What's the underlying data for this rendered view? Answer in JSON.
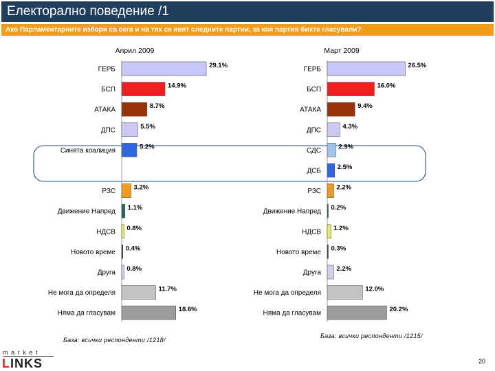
{
  "header": {
    "title": "Електорално поведение /1",
    "question": "Ако Парламентарните избори са сега и на тях се явят следните партии, за коя партия бихте гласували?"
  },
  "colors": {
    "title_bg": "#1f3e5c",
    "question_bg": "#f39c1a",
    "highlight_frame": "#2b4a88"
  },
  "chart_data": [
    {
      "type": "bar",
      "orientation": "horizontal",
      "title": "Април 2009",
      "xlim": [
        0,
        30
      ],
      "categories": [
        "ГЕРБ",
        "БСП",
        "АТАКА",
        "ДПС",
        "Синята коалиция",
        "",
        "РЗС",
        "Движение Напред",
        "НДСВ",
        "Новото време",
        "Друга",
        "Не мога да определя",
        "Няма да гласувам"
      ],
      "values": [
        29.1,
        14.9,
        8.7,
        5.5,
        5.2,
        null,
        3.2,
        1.1,
        0.8,
        0.4,
        0.8,
        11.7,
        18.6
      ],
      "labels": [
        "29.1%",
        "14.9%",
        "8.7%",
        "5.5%",
        "5.2%",
        "",
        "3.2%",
        "1.1%",
        "0.8%",
        "0.4%",
        "0.8%",
        "11.7%",
        "18.6%"
      ],
      "colors": [
        "#c8c8f8",
        "#f01e1e",
        "#9a3208",
        "#cccaf4",
        "#2e66e4",
        "#ffffff",
        "#f59a1c",
        "#1e6a5a",
        "#f2ee5a",
        "#333333",
        "#d0d0f0",
        "#c4c4c4",
        "#9c9c9c"
      ],
      "base_note": "База: всички респонденти /1218/"
    },
    {
      "type": "bar",
      "orientation": "horizontal",
      "title": "Март 2009",
      "xlim": [
        0,
        30
      ],
      "categories": [
        "ГЕРБ",
        "БСП",
        "АТАКА",
        "ДПС",
        "СДС",
        "ДСБ",
        "РЗС",
        "Движение Напред",
        "НДСВ",
        "Новото време",
        "Друга",
        "Не мога да определя",
        "Няма да гласувам"
      ],
      "values": [
        26.5,
        16.0,
        9.4,
        4.3,
        2.9,
        2.5,
        2.2,
        0.2,
        1.2,
        0.3,
        2.2,
        12.0,
        20.2
      ],
      "labels": [
        "26.5%",
        "16.0%",
        "9.4%",
        "4.3%",
        "2.9%",
        "2.5%",
        "2.2%",
        "0.2%",
        "1.2%",
        "0.3%",
        "2.2%",
        "12.0%",
        "20.2%"
      ],
      "colors": [
        "#c8c8f8",
        "#f01e1e",
        "#9a3208",
        "#cccaf4",
        "#9ec4ea",
        "#2e66e4",
        "#f59a1c",
        "#1e6a5a",
        "#f2ee5a",
        "#333333",
        "#d0d0f0",
        "#c4c4c4",
        "#9c9c9c"
      ],
      "base_note": "База: всички респонденти /1215/"
    }
  ],
  "footer": {
    "logo_top": "market",
    "logo_main_first": "L",
    "logo_main_rest": "INKS",
    "page_number": "20"
  }
}
